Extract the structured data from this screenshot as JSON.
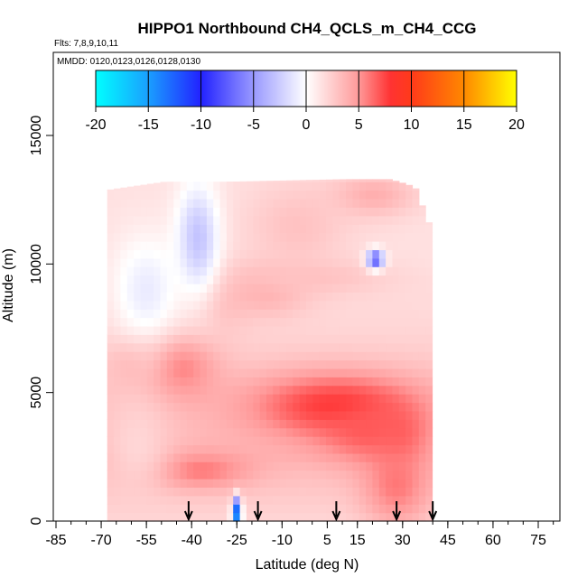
{
  "chart_data": {
    "type": "heatmap",
    "title": "HIPPO1 Northbound CH4_QCLS_m_CH4_CCG",
    "flights_label": "Flts: 7,8,9,10,11",
    "mmdd_label": "MMDD: 0120,0123,0126,0128,0130",
    "xlabel": "Latitude (deg N)",
    "ylabel": "Altitude (m)",
    "xlim": [
      -85,
      85
    ],
    "ylim": [
      0,
      17500
    ],
    "x_ticks": [
      -85,
      -70,
      -55,
      -40,
      -25,
      -10,
      5,
      15,
      30,
      45,
      60,
      75
    ],
    "y_ticks": [
      0,
      5000,
      10000,
      15000
    ],
    "colorbar": {
      "range": [
        -20,
        20
      ],
      "ticks": [
        -20,
        -15,
        -10,
        -5,
        0,
        5,
        10,
        15,
        20
      ],
      "ramp": [
        {
          "v": -20,
          "c": "#00ffff"
        },
        {
          "v": -15,
          "c": "#1a9fff"
        },
        {
          "v": -10,
          "c": "#2222ff"
        },
        {
          "v": -5,
          "c": "#9999ff"
        },
        {
          "v": 0,
          "c": "#ffffff"
        },
        {
          "v": 5,
          "c": "#ff9999"
        },
        {
          "v": 8,
          "c": "#ff3333"
        },
        {
          "v": 10,
          "c": "#ff3a1a"
        },
        {
          "v": 15,
          "c": "#ff8800"
        },
        {
          "v": 20,
          "c": "#ffff00"
        }
      ]
    },
    "sounding_latitudes": [
      -41,
      -18,
      8,
      28,
      40
    ],
    "field": {
      "lat_range": [
        -68,
        38
      ],
      "columns": [
        {
          "lat": -68,
          "top": 12900
        },
        {
          "lat": -50,
          "top": 13200
        },
        {
          "lat": -30,
          "top": 13200
        },
        {
          "lat": -10,
          "top": 13250
        },
        {
          "lat": 10,
          "top": 13300
        },
        {
          "lat": 25,
          "top": 13300
        },
        {
          "lat": 33,
          "top": 13000
        },
        {
          "lat": 38,
          "top": 11500
        }
      ],
      "anomaly_blobs": [
        {
          "lat": -45,
          "alt": 6000,
          "slat": 9,
          "salt": 900,
          "v": 6
        },
        {
          "lat": -58,
          "alt": 6200,
          "slat": 6,
          "salt": 700,
          "v": 4
        },
        {
          "lat": -30,
          "alt": 8500,
          "slat": 7,
          "salt": 900,
          "v": 3
        },
        {
          "lat": 8,
          "alt": 4500,
          "slat": 20,
          "salt": 900,
          "v": 8
        },
        {
          "lat": 20,
          "alt": 3500,
          "slat": 12,
          "salt": 800,
          "v": 7
        },
        {
          "lat": 28,
          "alt": 3300,
          "slat": 5,
          "salt": 700,
          "v": 7
        },
        {
          "lat": 28,
          "alt": 1500,
          "slat": 8,
          "salt": 1200,
          "v": 6
        },
        {
          "lat": -38,
          "alt": 2000,
          "slat": 12,
          "salt": 500,
          "v": 6
        },
        {
          "lat": -58,
          "alt": 3000,
          "slat": 8,
          "salt": 1500,
          "v": 2
        },
        {
          "lat": -15,
          "alt": 9000,
          "slat": 10,
          "salt": 700,
          "v": 4
        },
        {
          "lat": 0,
          "alt": 9500,
          "slat": 18,
          "salt": 500,
          "v": 3
        },
        {
          "lat": 20,
          "alt": 12700,
          "slat": 10,
          "salt": 600,
          "v": 4
        },
        {
          "lat": -5,
          "alt": 11500,
          "slat": 12,
          "salt": 1200,
          "v": 3
        },
        {
          "lat": -38,
          "alt": 11000,
          "slat": 5,
          "salt": 1500,
          "v": -3
        },
        {
          "lat": 21,
          "alt": 10200,
          "slat": 2,
          "salt": 250,
          "v": -8
        },
        {
          "lat": -55,
          "alt": 9000,
          "slat": 8,
          "salt": 1500,
          "v": -1
        },
        {
          "lat": -25,
          "alt": 300,
          "slat": 1,
          "salt": 400,
          "v": -15
        }
      ],
      "background_by_altitude": [
        {
          "alt": 0,
          "v": 2
        },
        {
          "alt": 2500,
          "v": 3.5
        },
        {
          "alt": 5000,
          "v": 3
        },
        {
          "alt": 7500,
          "v": 2
        },
        {
          "alt": 10000,
          "v": 1.5
        },
        {
          "alt": 13300,
          "v": 1.5
        }
      ]
    }
  }
}
